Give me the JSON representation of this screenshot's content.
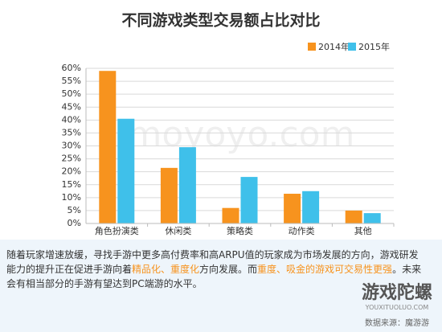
{
  "chart_data": {
    "type": "bar",
    "title": "不同游戏类型交易额占比对比",
    "categories": [
      "角色扮演类",
      "休闲类",
      "策略类",
      "动作类",
      "其他"
    ],
    "series": [
      {
        "name": "2014年",
        "color": "#f7931e",
        "values": [
          59,
          21.5,
          6,
          11.5,
          5
        ]
      },
      {
        "name": "2015年",
        "color": "#3fc0ea",
        "values": [
          40.5,
          29.5,
          18,
          12.5,
          4
        ]
      }
    ],
    "ylim": [
      0,
      60
    ],
    "yticks": [
      {
        "value": 0,
        "label": "0%"
      },
      {
        "value": 5,
        "label": "5%"
      },
      {
        "value": 10,
        "label": "10%"
      },
      {
        "value": 15,
        "label": "15%"
      },
      {
        "value": 20,
        "label": "20%"
      },
      {
        "value": 25,
        "label": "25%"
      },
      {
        "value": 30,
        "label": "30%"
      },
      {
        "value": 35,
        "label": "35%"
      },
      {
        "value": 40,
        "label": "40%"
      },
      {
        "value": 45,
        "label": "45%"
      },
      {
        "value": 50,
        "label": "50%"
      },
      {
        "value": 55,
        "label": "55%"
      },
      {
        "value": 60,
        "label": "60%"
      }
    ],
    "grid": true,
    "legend": "top-right"
  },
  "watermark": "moyoyo.com",
  "note": {
    "segments": [
      {
        "text": "随着玩家增速放缓，寻找手游中更多高付费率和高ARPU值的玩家成为市场发展的方向，游戏研发能力的提升正在促进手游向着",
        "color": "#333333"
      },
      {
        "text": "精品化、重度化",
        "color": "#f7931e"
      },
      {
        "text": "方向发展。而",
        "color": "#333333"
      },
      {
        "text": "重度、吸金的游戏可交易性更强",
        "color": "#f7931e"
      },
      {
        "text": "。未来会有相当部分的手游有望达到PC端游的水平。",
        "color": "#333333"
      }
    ]
  },
  "brand": {
    "name": "游戏陀螺",
    "site": "YOUXITUOLUO.COM",
    "source": "数据来源：魔游游"
  }
}
